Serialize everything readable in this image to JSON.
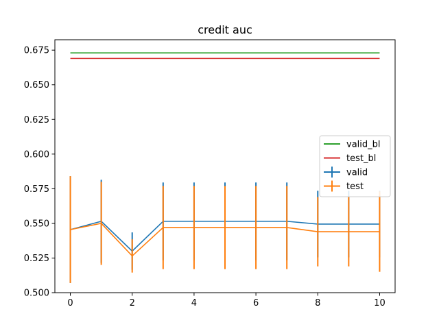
{
  "chart_data": {
    "type": "line",
    "title": "credit  auc",
    "xlabel": "",
    "ylabel": "",
    "xlim": [
      -0.5,
      10.5
    ],
    "ylim": [
      0.5,
      0.6825
    ],
    "x_ticks": [
      0,
      2,
      4,
      6,
      8,
      10
    ],
    "y_ticks": [
      0.5,
      0.525,
      0.55,
      0.575,
      0.6,
      0.625,
      0.65,
      0.675
    ],
    "y_tick_labels": [
      "0.500",
      "0.525",
      "0.550",
      "0.575",
      "0.600",
      "0.625",
      "0.650",
      "0.675"
    ],
    "grid": false,
    "legend_position": "center-right",
    "series": [
      {
        "name": "valid_bl",
        "color": "#2ca02c",
        "kind": "line",
        "x": [
          0,
          10
        ],
        "y": [
          0.673,
          0.673
        ]
      },
      {
        "name": "test_bl",
        "color": "#d62728",
        "kind": "line",
        "x": [
          0,
          10
        ],
        "y": [
          0.669,
          0.669
        ]
      },
      {
        "name": "valid",
        "color": "#1f77b4",
        "kind": "errorbar",
        "x": [
          0,
          1,
          2,
          3,
          4,
          5,
          6,
          7,
          8,
          9,
          10
        ],
        "y": [
          0.5455,
          0.5515,
          0.53,
          0.5515,
          0.5515,
          0.5515,
          0.5515,
          0.5515,
          0.5495,
          0.5495,
          0.5495
        ],
        "err": [
          0.0385,
          0.03,
          0.0135,
          0.028,
          0.028,
          0.028,
          0.028,
          0.028,
          0.024,
          0.024,
          0.024
        ]
      },
      {
        "name": "test",
        "color": "#ff7f0e",
        "kind": "errorbar",
        "x": [
          0,
          1,
          2,
          3,
          4,
          5,
          6,
          7,
          8,
          9,
          10
        ],
        "y": [
          0.5455,
          0.55,
          0.5265,
          0.547,
          0.547,
          0.547,
          0.547,
          0.547,
          0.544,
          0.544,
          0.544
        ],
        "err": [
          0.0385,
          0.03,
          0.012,
          0.03,
          0.03,
          0.03,
          0.03,
          0.03,
          0.025,
          0.025,
          0.029
        ]
      }
    ],
    "legend": [
      "valid_bl",
      "test_bl",
      "valid",
      "test"
    ]
  }
}
